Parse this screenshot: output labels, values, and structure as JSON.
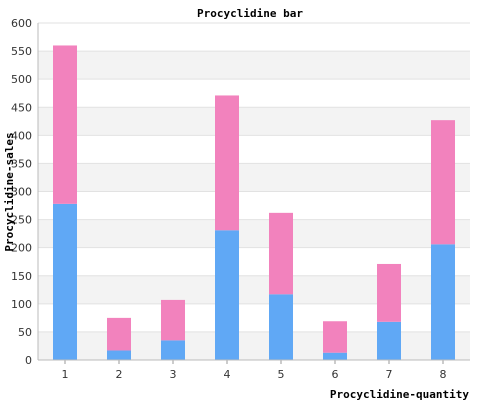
{
  "chart_data": {
    "type": "bar",
    "stacked": true,
    "title": "Procyclidine bar",
    "xlabel": "Procyclidine-quantity",
    "ylabel": "Procyclidine-sales",
    "categories": [
      "1",
      "2",
      "3",
      "4",
      "5",
      "6",
      "7",
      "8"
    ],
    "series": [
      {
        "values": [
          278,
          17,
          35,
          231,
          117,
          13,
          68,
          206
        ],
        "color": "#60a8f5"
      },
      {
        "values": [
          282,
          58,
          72,
          240,
          145,
          56,
          103,
          221
        ],
        "color": "#f282bd"
      }
    ],
    "ylim": [
      0,
      600
    ],
    "yticks": [
      0,
      50,
      100,
      150,
      200,
      250,
      300,
      350,
      400,
      450,
      500,
      550,
      600
    ],
    "grid": true,
    "band_colors": [
      "#ffffff",
      "#f3f3f3"
    ],
    "legend": "none"
  }
}
